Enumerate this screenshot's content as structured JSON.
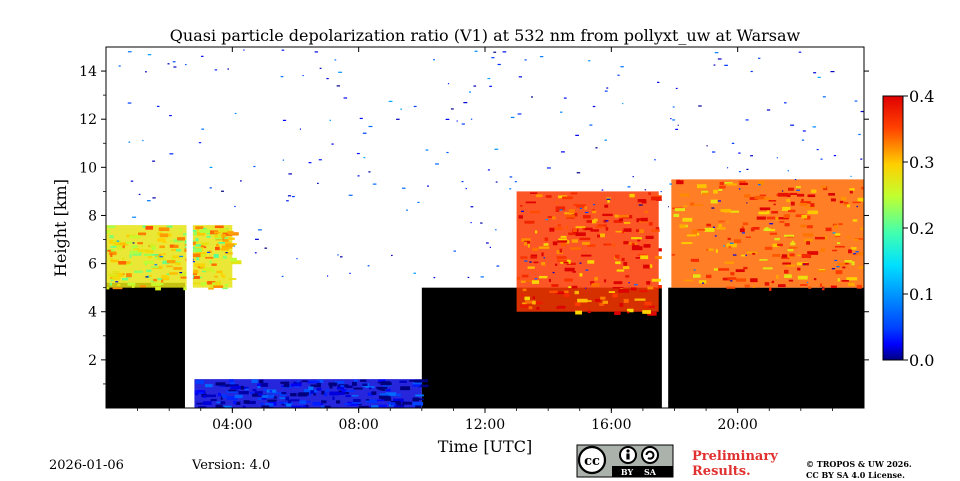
{
  "chart_data": {
    "type": "heatmap",
    "title": "Quasi particle depolarization ratio (V1) at 532 nm from pollyxt_uw at Warsaw",
    "xlabel": "Time [UTC]",
    "ylabel": "Height [km]",
    "x_range_hours": [
      0,
      24
    ],
    "ylim": [
      0,
      15
    ],
    "x_ticks": [
      {
        "value": 4,
        "label": "04:00"
      },
      {
        "value": 8,
        "label": "08:00"
      },
      {
        "value": 12,
        "label": "12:00"
      },
      {
        "value": 16,
        "label": "16:00"
      },
      {
        "value": 20,
        "label": "20:00"
      }
    ],
    "y_ticks": [
      {
        "value": 2,
        "label": "2"
      },
      {
        "value": 4,
        "label": "4"
      },
      {
        "value": 6,
        "label": "6"
      },
      {
        "value": 8,
        "label": "8"
      },
      {
        "value": 10,
        "label": "10"
      },
      {
        "value": 12,
        "label": "12"
      },
      {
        "value": 14,
        "label": "14"
      }
    ],
    "colorbar": {
      "range": [
        0.0,
        0.4
      ],
      "ticks": [
        {
          "value": 0.0,
          "label": "0.0"
        },
        {
          "value": 0.1,
          "label": "0.1"
        },
        {
          "value": 0.2,
          "label": "0.2"
        },
        {
          "value": 0.3,
          "label": "0.3"
        },
        {
          "value": 0.4,
          "label": "0.4"
        }
      ],
      "colormap": "jet"
    },
    "masked_color": "#000000",
    "missing_data_gaps_hours": [
      [
        2.55,
        2.75
      ],
      [
        17.6,
        17.8
      ]
    ],
    "regions": [
      {
        "name": "low-layer-morning",
        "t": [
          0.0,
          2.5
        ],
        "h": [
          0.0,
          5.2
        ],
        "depol": "masked"
      },
      {
        "name": "cloud-layer-morning",
        "t": [
          0.0,
          4.0
        ],
        "h": [
          5.0,
          7.6
        ],
        "depol": 0.28
      },
      {
        "name": "boundary-layer-night",
        "t": [
          2.8,
          10.0
        ],
        "h": [
          0.0,
          1.2
        ],
        "depol": 0.03
      },
      {
        "name": "aerosol-layer-afternoon",
        "t": [
          10.0,
          24.0
        ],
        "h": [
          0.0,
          5.0
        ],
        "depol": "masked"
      },
      {
        "name": "cirrus-afternoon",
        "t": [
          13.0,
          17.5
        ],
        "h": [
          4.0,
          9.0
        ],
        "depol": 0.36
      },
      {
        "name": "cirrus-evening",
        "t": [
          17.9,
          24.0
        ],
        "h": [
          5.0,
          9.5
        ],
        "depol": 0.34
      }
    ]
  },
  "footer": {
    "date": "2026-01-06",
    "version": "Version: 4.0",
    "preliminary_line1": "Preliminary",
    "preliminary_line2": "Results.",
    "copyright_line1": "© TROPOS & UW 2026.",
    "copyright_line2": "CC BY SA 4.0 License.",
    "license_badge": {
      "cc": "cc",
      "by": "BY",
      "sa": "SA"
    }
  }
}
